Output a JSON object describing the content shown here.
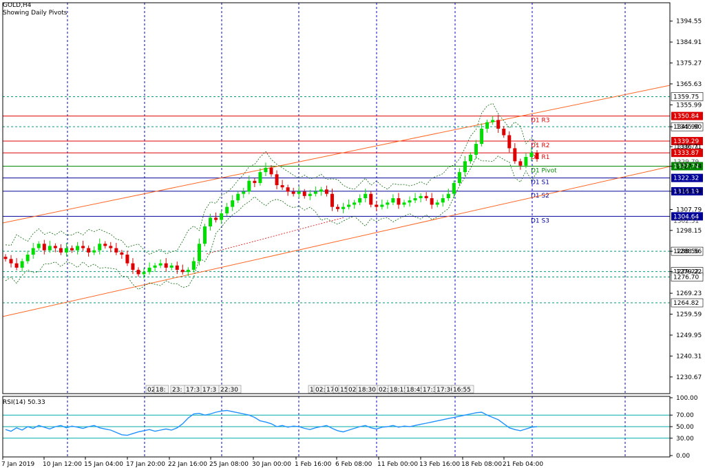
{
  "header": {
    "symbol": "GOLD,H4",
    "subtitle": "Showing Daily Pivots"
  },
  "rsi_panel": {
    "label": "RSI(14) 50.33"
  },
  "colors": {
    "up_candle": "#00dd00",
    "down_candle": "#dd0000",
    "grid": "#0000cc",
    "resistance": "#dd0000",
    "support": "#000099",
    "pivot": "#008800",
    "channel": "#ff6622",
    "bands": "#006600",
    "rsi_line": "#1e90ff",
    "rsi_levels": "#00aaaa",
    "dotted_levels": "#009977"
  },
  "chart_data": {
    "type": "candlestick",
    "symbol": "GOLD",
    "timeframe": "H4",
    "ylim": [
      1223,
      1403
    ],
    "price_ticks": [
      "1394.55",
      "1384.91",
      "1375.27",
      "1365.63",
      "1355.99",
      "1345.90",
      "1336.71",
      "1327.74",
      "1316.19",
      "1307.79",
      "1298.15",
      "1288.56",
      "1279.22",
      "1269.23",
      "1259.59",
      "1249.95",
      "1240.31",
      "1230.67"
    ],
    "x_labels": [
      "7 Jan 2019",
      "10 Jan 12:00",
      "15 Jan 04:00",
      "17 Jan 20:00",
      "22 Jan 16:00",
      "25 Jan 08:00",
      "30 Jan 00:00",
      "1 Feb 16:00",
      "6 Feb 08:00",
      "11 Feb 00:00",
      "13 Feb 16:00",
      "18 Feb 08:00",
      "21 Feb 04:00"
    ],
    "pivots": [
      {
        "name": "D1 R3",
        "price": 1350.84,
        "label": "1350.84",
        "kind": "resistance"
      },
      {
        "name": "D1 R2",
        "price": 1339.29,
        "label": "1339.29",
        "kind": "resistance"
      },
      {
        "name": "D1 R1",
        "price": 1333.87,
        "label": "1333.87",
        "kind": "resistance"
      },
      {
        "name": "D1 Pivot",
        "price": 1327.74,
        "label": "1327.74",
        "kind": "pivot"
      },
      {
        "name": "D1 S1",
        "price": 1322.32,
        "label": "1322.32",
        "kind": "support"
      },
      {
        "name": "D1 S2",
        "price": 1316.19,
        "label": "1316.19",
        "kind": "support"
      },
      {
        "name": "D1 S3",
        "price": 1304.64,
        "label": "1304.64",
        "kind": "support"
      }
    ],
    "dotted_levels": [
      {
        "price": 1359.75,
        "label": "1359.75"
      },
      {
        "price": 1345.9,
        "label": "1345.90"
      },
      {
        "price": 1288.56,
        "label": "1288.56"
      },
      {
        "price": 1279.22,
        "label": "1279.22"
      },
      {
        "price": 1276.7,
        "label": "1276.70"
      },
      {
        "price": 1264.82,
        "label": "1264.82"
      }
    ],
    "overlap_labels": [
      "1336.71",
      "1329.79",
      "1302.51"
    ],
    "closes": [
      1285,
      1283,
      1281,
      1284,
      1287,
      1290,
      1292,
      1289,
      1291,
      1290,
      1288,
      1290,
      1289,
      1291,
      1290,
      1288,
      1289,
      1292,
      1291,
      1290,
      1288,
      1287,
      1283,
      1280,
      1278,
      1279,
      1281,
      1282,
      1283,
      1281,
      1282,
      1280,
      1279,
      1280,
      1284,
      1292,
      1300,
      1304,
      1303,
      1306,
      1309,
      1312,
      1315,
      1316,
      1321,
      1320,
      1325,
      1327,
      1324,
      1319,
      1318,
      1316,
      1315,
      1316,
      1314,
      1315,
      1316,
      1317,
      1315,
      1309,
      1308,
      1309,
      1310,
      1311,
      1313,
      1315,
      1310,
      1309,
      1310,
      1311,
      1313,
      1310,
      1311,
      1312,
      1313,
      1314,
      1313,
      1310,
      1311,
      1313,
      1315,
      1320,
      1325,
      1330,
      1333,
      1338,
      1345,
      1348,
      1349,
      1345,
      1342,
      1336,
      1330,
      1328,
      1332,
      1334,
      1331
    ],
    "rsi": {
      "ylim": [
        0,
        100
      ],
      "ticks": [
        "100.00",
        "70.00",
        "50.00",
        "30.00",
        "0.00"
      ],
      "levels": [
        70,
        50,
        30
      ],
      "values": [
        45,
        42,
        48,
        44,
        50,
        47,
        52,
        49,
        46,
        50,
        52,
        48,
        51,
        49,
        47,
        50,
        52,
        48,
        46,
        44,
        40,
        36,
        35,
        38,
        41,
        43,
        45,
        42,
        44,
        46,
        44,
        48,
        55,
        65,
        72,
        73,
        70,
        72,
        75,
        77,
        78,
        76,
        74,
        72,
        70,
        66,
        60,
        58,
        55,
        50,
        52,
        49,
        51,
        50,
        47,
        45,
        48,
        50,
        52,
        47,
        43,
        41,
        44,
        47,
        50,
        52,
        48,
        46,
        49,
        50,
        52,
        49,
        51,
        50,
        52,
        54,
        56,
        58,
        60,
        62,
        64,
        66,
        68,
        70,
        72,
        74,
        75,
        70,
        66,
        62,
        55,
        48,
        45,
        43,
        46,
        49,
        50
      ]
    }
  }
}
